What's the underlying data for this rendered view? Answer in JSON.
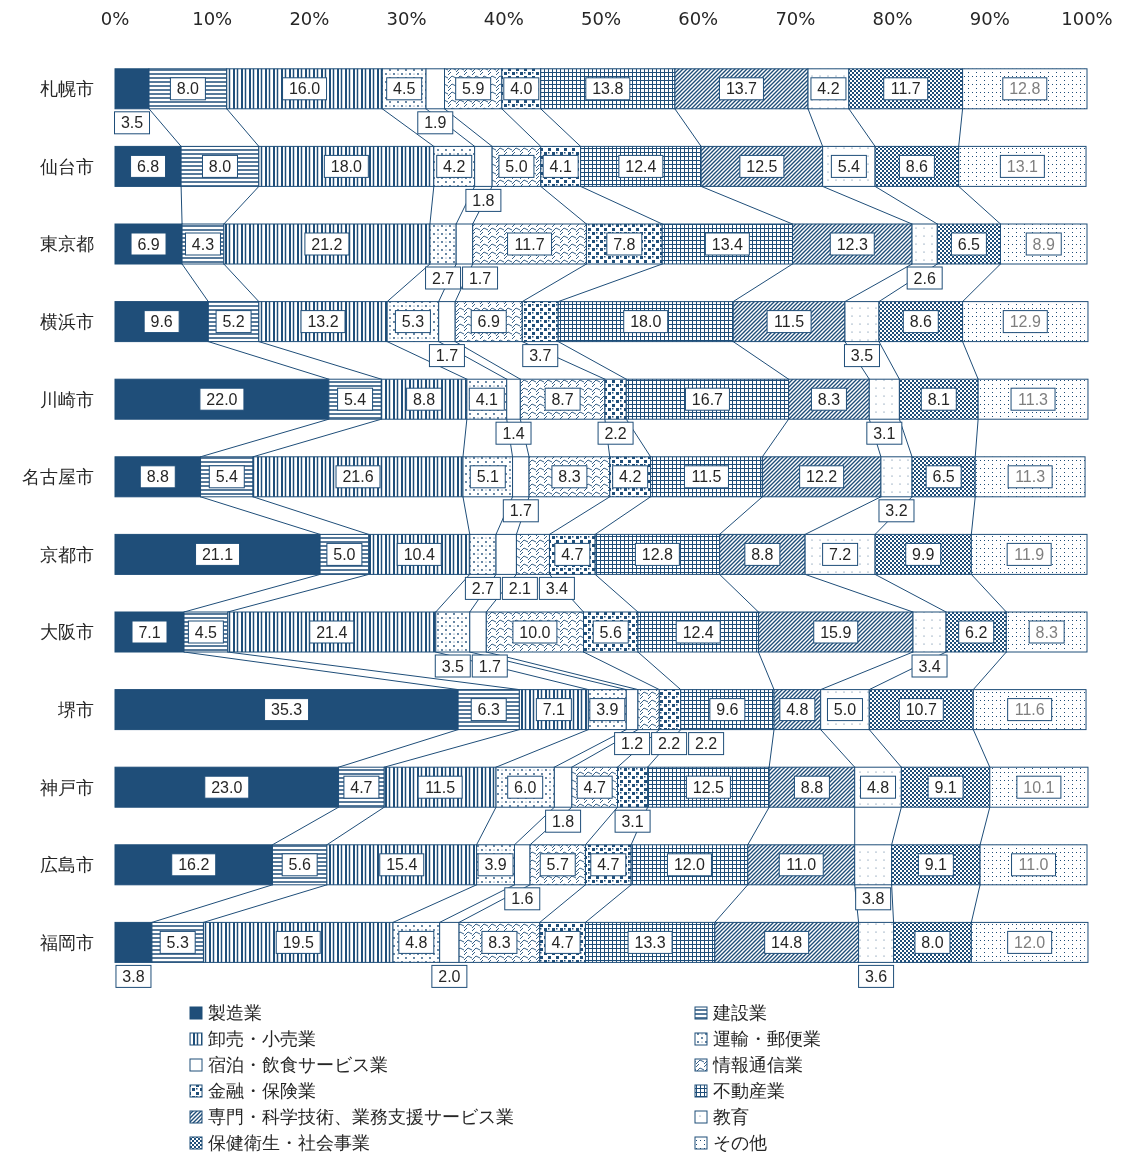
{
  "chart_data": {
    "type": "bar",
    "orientation": "horizontal",
    "stacked": true,
    "legend": "bottom",
    "categories": [
      "札幌市",
      "仙台市",
      "東京都",
      "横浜市",
      "川崎市",
      "名古屋市",
      "京都市",
      "大阪市",
      "堺市",
      "神戸市",
      "広島市",
      "福岡市"
    ],
    "xlim": [
      0,
      100
    ],
    "xticks": [
      {
        "value": 0,
        "label": "0%"
      },
      {
        "value": 10,
        "label": "10%"
      },
      {
        "value": 20,
        "label": "20%"
      },
      {
        "value": 30,
        "label": "30%"
      },
      {
        "value": 40,
        "label": "40%"
      },
      {
        "value": 50,
        "label": "50%"
      },
      {
        "value": 60,
        "label": "60%"
      },
      {
        "value": 70,
        "label": "70%"
      },
      {
        "value": 80,
        "label": "80%"
      },
      {
        "value": 90,
        "label": "90%"
      },
      {
        "value": 100,
        "label": "100%"
      }
    ],
    "series": [
      {
        "name": "製造業",
        "color": "#1f4e79",
        "values": [
          3.5,
          6.8,
          6.9,
          9.6,
          22.0,
          8.8,
          21.1,
          7.1,
          35.3,
          23.0,
          16.2,
          3.8
        ],
        "value_labels": [
          "3.5",
          "6.8",
          "6.9",
          "9.6",
          "22.0",
          "8.8",
          "21.1",
          "7.1",
          "35.3",
          "23.0",
          "16.2",
          "3.8"
        ]
      },
      {
        "name": "建設業",
        "color": "#1f4e79",
        "values": [
          8.0,
          8.0,
          4.3,
          5.2,
          5.4,
          5.4,
          5.0,
          4.5,
          6.3,
          4.7,
          5.6,
          5.3
        ],
        "value_labels": [
          "8.0",
          "8.0",
          "4.3",
          "5.2",
          "5.4",
          "5.4",
          "5.0",
          "4.5",
          "6.3",
          "4.7",
          "5.6",
          "5.3"
        ]
      },
      {
        "name": "卸売・小売業",
        "color": "#1f4e79",
        "values": [
          16.0,
          18.0,
          21.2,
          13.2,
          8.8,
          21.6,
          10.4,
          21.4,
          7.1,
          11.5,
          15.4,
          19.5
        ],
        "value_labels": [
          "16.0",
          "18.0",
          "21.2",
          "13.2",
          "8.8",
          "21.6",
          "10.4",
          "21.4",
          "7.1",
          "11.5",
          "15.4",
          "19.5"
        ]
      },
      {
        "name": "運輸・郵便業",
        "color": "#1f4e79",
        "values": [
          4.5,
          4.2,
          2.7,
          5.3,
          4.1,
          5.1,
          2.7,
          3.5,
          3.9,
          6.0,
          3.9,
          4.8
        ],
        "value_labels": [
          "4.5",
          "4.2",
          "2.7",
          "5.3",
          "4.1",
          "5.1",
          "2.7",
          "3.5",
          "3.9",
          "6.0",
          "3.9",
          "4.8"
        ]
      },
      {
        "name": "宿泊・飲食サービス業",
        "color": "#1f4e79",
        "values": [
          1.9,
          1.8,
          1.7,
          1.7,
          1.4,
          1.7,
          2.1,
          1.7,
          1.2,
          1.8,
          1.6,
          2.0
        ],
        "value_labels": [
          "1.9",
          "1.8",
          "1.7",
          "1.7",
          "1.4",
          "1.7",
          "2.1",
          "1.7",
          "1.2",
          "1.8",
          "1.6",
          "2.0"
        ]
      },
      {
        "name": "情報通信業",
        "color": "#1f4e79",
        "values": [
          5.9,
          5.0,
          11.7,
          6.9,
          8.7,
          8.3,
          3.4,
          10.0,
          2.2,
          4.7,
          5.7,
          8.3
        ],
        "value_labels": [
          "5.9",
          "5.0",
          "11.7",
          "6.9",
          "8.7",
          "8.3",
          "3.4",
          "10.0",
          "2.2",
          "4.7",
          "5.7",
          "8.3"
        ]
      },
      {
        "name": "金融・保険業",
        "color": "#1f4e79",
        "values": [
          4.0,
          4.1,
          7.8,
          3.7,
          2.2,
          4.2,
          4.7,
          5.6,
          2.2,
          3.1,
          4.7,
          4.7
        ],
        "value_labels": [
          "4.0",
          "4.1",
          "7.8",
          "3.7",
          "2.2",
          "4.2",
          "4.7",
          "5.6",
          "2.2",
          "3.1",
          "4.7",
          "4.7"
        ]
      },
      {
        "name": "不動産業",
        "color": "#1f4e79",
        "values": [
          13.8,
          12.4,
          13.4,
          18.0,
          16.7,
          11.5,
          12.8,
          12.4,
          9.6,
          12.5,
          12.0,
          13.3
        ],
        "value_labels": [
          "13.8",
          "12.4",
          "13.4",
          "18.0",
          "16.7",
          "11.5",
          "12.8",
          "12.4",
          "9.6",
          "12.5",
          "12.0",
          "13.3"
        ]
      },
      {
        "name": "専門・科学技術、業務支援サービス業",
        "color": "#1f4e79",
        "values": [
          13.7,
          12.5,
          12.3,
          11.5,
          8.3,
          12.2,
          8.8,
          15.9,
          4.8,
          8.8,
          11.0,
          14.8
        ],
        "value_labels": [
          "13.7",
          "12.5",
          "12.3",
          "11.5",
          "8.3",
          "12.2",
          "8.8",
          "15.9",
          "4.8",
          "8.8",
          "11.0",
          "14.8"
        ]
      },
      {
        "name": "教育",
        "color": "#1f4e79",
        "values": [
          4.2,
          5.4,
          2.6,
          3.5,
          3.1,
          3.2,
          7.2,
          3.4,
          5.0,
          4.8,
          3.8,
          3.6
        ],
        "value_labels": [
          "4.2",
          "5.4",
          "2.6",
          "3.5",
          "3.1",
          "3.2",
          "7.2",
          "3.4",
          "5.0",
          "4.8",
          "3.8",
          "3.6"
        ]
      },
      {
        "name": "保健衛生・社会事業",
        "color": "#1f4e79",
        "values": [
          11.7,
          8.6,
          6.5,
          8.6,
          8.1,
          6.5,
          9.9,
          6.2,
          10.7,
          9.1,
          9.1,
          8.0
        ],
        "value_labels": [
          "11.7",
          "8.6",
          "6.5",
          "8.6",
          "8.1",
          "6.5",
          "9.9",
          "6.2",
          "10.7",
          "9.1",
          "9.1",
          "8.0"
        ]
      },
      {
        "name": "その他",
        "color": "#1f4e79",
        "values": [
          12.8,
          13.1,
          8.9,
          12.9,
          11.3,
          11.3,
          11.9,
          8.3,
          11.6,
          10.1,
          11.0,
          12.0
        ],
        "value_labels": [
          "12.8",
          "13.1",
          "8.9",
          "12.9",
          "11.3",
          "11.3",
          "11.9",
          "8.3",
          "11.6",
          "10.1",
          "11.0",
          "12.0"
        ]
      }
    ]
  }
}
